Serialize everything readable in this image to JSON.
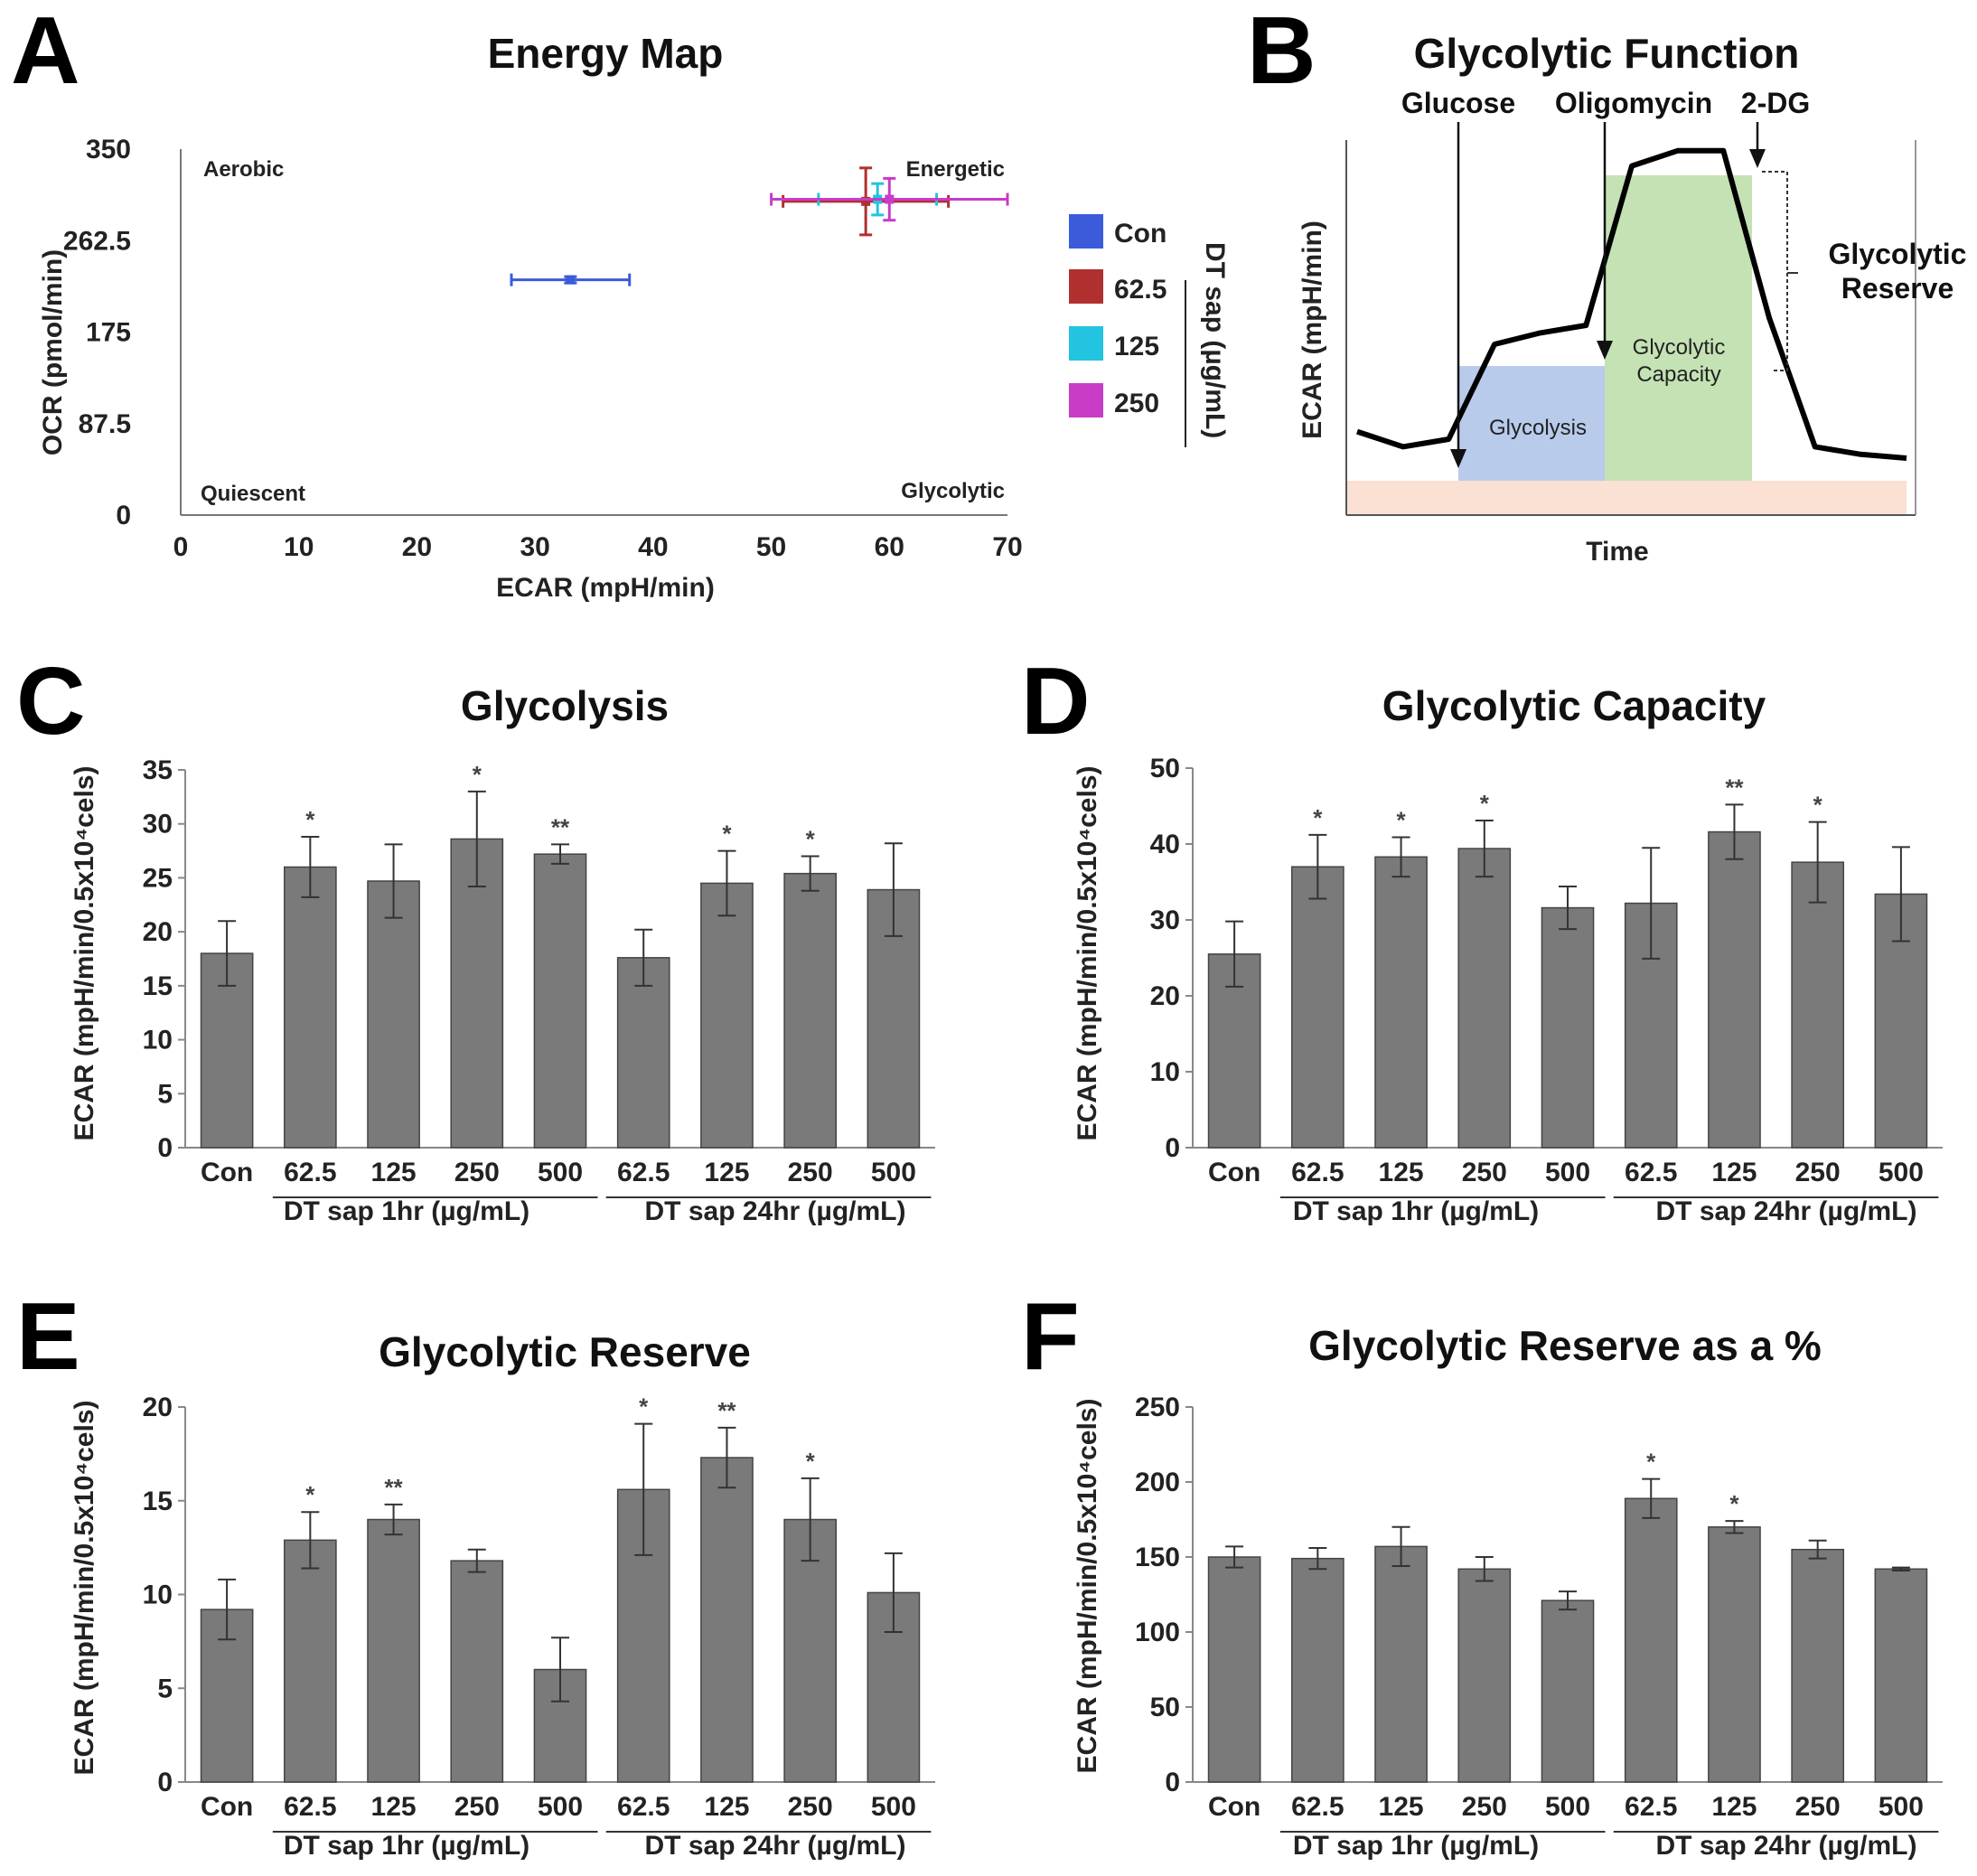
{
  "chart_data": [
    {
      "id": "A",
      "type": "scatter",
      "panel_label": "A",
      "title": "Energy Map",
      "xlabel": "ECAR (mpH/min)",
      "ylabel": "OCR (pmol/min)",
      "xlim": [
        0,
        70
      ],
      "ylim": [
        0,
        350
      ],
      "x_ticks": [
        "0",
        "10",
        "20",
        "30",
        "40",
        "50",
        "60",
        "70"
      ],
      "y_ticks": [
        "0",
        "87.5",
        "175",
        "262.5",
        "350"
      ],
      "quadrant_labels": {
        "top_left": "Aerobic",
        "top_right": "Energetic",
        "bottom_left": "Quiescent",
        "bottom_right": "Glycolytic"
      },
      "legend_title": "DT sap (µg/mL)",
      "points": [
        {
          "name": "Con",
          "color": "#3b5bdb",
          "x": 33,
          "y": 225,
          "xerr": 5,
          "yerr": 3
        },
        {
          "name": "62.5",
          "color": "#b03030",
          "x": 58,
          "y": 300,
          "xerr": 7,
          "yerr": 32
        },
        {
          "name": "125",
          "color": "#22c4e0",
          "x": 59,
          "y": 302,
          "xerr": 5,
          "yerr": 15
        },
        {
          "name": "250",
          "color": "#c83cc8",
          "x": 60,
          "y": 302,
          "xerr": 10,
          "yerr": 20
        }
      ]
    },
    {
      "id": "B",
      "type": "line",
      "panel_label": "B",
      "title": "Glycolytic Function",
      "xlabel": "Time",
      "ylabel": "ECAR (mpH/min)",
      "injections": [
        "Glucose",
        "Oligomycin",
        "2-DG"
      ],
      "regions": [
        "Glycolysis",
        "Glycolytic Capacity"
      ],
      "bracket_label": "Glycolytic Reserve",
      "trace": [
        [
          0,
          22
        ],
        [
          1,
          18
        ],
        [
          2,
          20
        ],
        [
          3,
          45
        ],
        [
          4,
          48
        ],
        [
          5,
          50
        ],
        [
          6,
          92
        ],
        [
          7,
          96
        ],
        [
          8,
          96
        ],
        [
          9,
          52
        ],
        [
          10,
          18
        ],
        [
          11,
          16
        ],
        [
          12,
          15
        ]
      ]
    },
    {
      "id": "C",
      "type": "bar",
      "panel_label": "C",
      "title": "Glycolysis",
      "ylabel": "ECAR (mpH/min/0.5x10⁴cels)",
      "ylim": [
        0,
        35
      ],
      "y_ticks": [
        "0",
        "5",
        "10",
        "15",
        "20",
        "25",
        "30",
        "35"
      ],
      "categories": [
        "Con",
        "62.5",
        "125",
        "250",
        "500",
        "62.5",
        "125",
        "250",
        "500"
      ],
      "values": [
        18,
        26,
        24.7,
        28.6,
        27.2,
        17.6,
        24.5,
        25.4,
        23.9
      ],
      "errors": [
        3,
        2.8,
        3.4,
        4.4,
        0.9,
        2.6,
        3,
        1.6,
        4.3
      ],
      "significance": [
        "",
        "*",
        "",
        "*",
        "**",
        "",
        "*",
        "*",
        ""
      ],
      "groups": [
        "DT sap 1hr (µg/mL)",
        "DT sap 24hr (µg/mL)"
      ]
    },
    {
      "id": "D",
      "type": "bar",
      "panel_label": "D",
      "title": "Glycolytic Capacity",
      "ylabel": "ECAR (mpH/min/0.5x10⁴cels)",
      "ylim": [
        0,
        50
      ],
      "y_ticks": [
        "0",
        "10",
        "20",
        "30",
        "40",
        "50"
      ],
      "categories": [
        "Con",
        "62.5",
        "125",
        "250",
        "500",
        "62.5",
        "125",
        "250",
        "500"
      ],
      "values": [
        25.5,
        37,
        38.3,
        39.4,
        31.6,
        32.2,
        41.6,
        37.6,
        33.4
      ],
      "errors": [
        4.3,
        4.2,
        2.6,
        3.7,
        2.8,
        7.3,
        3.6,
        5.3,
        6.2
      ],
      "significance": [
        "",
        "*",
        "*",
        "*",
        "",
        "",
        "**",
        "*",
        ""
      ],
      "groups": [
        "DT sap 1hr (µg/mL)",
        "DT sap 24hr (µg/mL)"
      ]
    },
    {
      "id": "E",
      "type": "bar",
      "panel_label": "E",
      "title": "Glycolytic Reserve",
      "ylabel": "ECAR (mpH/min/0.5x10⁴cels)",
      "ylim": [
        0,
        20
      ],
      "y_ticks": [
        "0",
        "5",
        "10",
        "15",
        "20"
      ],
      "categories": [
        "Con",
        "62.5",
        "125",
        "250",
        "500",
        "62.5",
        "125",
        "250",
        "500"
      ],
      "values": [
        9.2,
        12.9,
        14,
        11.8,
        6,
        15.6,
        17.3,
        14,
        10.1
      ],
      "errors": [
        1.6,
        1.5,
        0.8,
        0.6,
        1.7,
        3.5,
        1.6,
        2.2,
        2.1
      ],
      "significance": [
        "",
        "*",
        "**",
        "",
        "",
        "*",
        "**",
        "*",
        ""
      ],
      "groups": [
        "DT sap 1hr (µg/mL)",
        "DT sap 24hr (µg/mL)"
      ]
    },
    {
      "id": "F",
      "type": "bar",
      "panel_label": "F",
      "title": "Glycolytic Reserve as a %",
      "ylabel": "ECAR (mpH/min/0.5x10⁴cels)",
      "ylim": [
        0,
        250
      ],
      "y_ticks": [
        "0",
        "50",
        "100",
        "150",
        "200",
        "250"
      ],
      "categories": [
        "Con",
        "62.5",
        "125",
        "250",
        "500",
        "62.5",
        "125",
        "250",
        "500"
      ],
      "values": [
        150,
        149,
        157,
        142,
        121,
        189,
        170,
        155,
        142
      ],
      "errors": [
        7,
        7,
        13,
        8,
        6,
        13,
        4,
        6,
        1
      ],
      "significance": [
        "",
        "",
        "",
        "",
        "",
        "*",
        "*",
        "",
        ""
      ],
      "groups": [
        "DT sap 1hr (µg/mL)",
        "DT sap 24hr (µg/mL)"
      ]
    }
  ]
}
